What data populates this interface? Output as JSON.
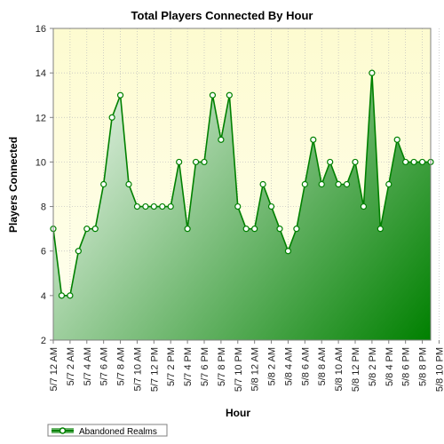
{
  "chart_data": {
    "type": "area",
    "title": "Total Players Connected By Hour",
    "xlabel": "Hour",
    "ylabel": "Players Connected",
    "ylim": [
      2,
      16
    ],
    "yticks": [
      2,
      4,
      6,
      8,
      10,
      12,
      14,
      16
    ],
    "grid": true,
    "legend_position": "bottom-left",
    "x_tick_labels": [
      "5/7 12 AM",
      "5/7 2 AM",
      "5/7 4 AM",
      "5/7 6 AM",
      "5/7 8 AM",
      "5/7 10 AM",
      "5/7 12 PM",
      "5/7 2 PM",
      "5/7 4 PM",
      "5/7 6 PM",
      "5/7 8 PM",
      "5/7 10 PM",
      "5/8 12 AM",
      "5/8 2 AM",
      "5/8 4 AM",
      "5/8 6 AM",
      "5/8 8 AM",
      "5/8 10 AM",
      "5/8 12 PM",
      "5/8 2 PM",
      "5/8 4 PM",
      "5/8 6 PM",
      "5/8 8 PM",
      "5/8 10 PM"
    ],
    "series": [
      {
        "name": "Abandoned Realms",
        "color": "#008000",
        "values": [
          7,
          4,
          4,
          6,
          7,
          7,
          9,
          12,
          13,
          9,
          8,
          8,
          8,
          8,
          8,
          10,
          7,
          10,
          10,
          13,
          11,
          13,
          8,
          7,
          7,
          9,
          8,
          7,
          6,
          7,
          9,
          11,
          9,
          10,
          9,
          9,
          10,
          8,
          14,
          7,
          9,
          11,
          10,
          10,
          10,
          10
        ]
      }
    ]
  },
  "colors": {
    "plot_bg_top": "#fdfbd0",
    "plot_bg_bottom": "#fffff0",
    "grid": "#bdbdbd",
    "line": "#008000",
    "fill_light": "#ffffff",
    "fill_dark": "#008000"
  }
}
